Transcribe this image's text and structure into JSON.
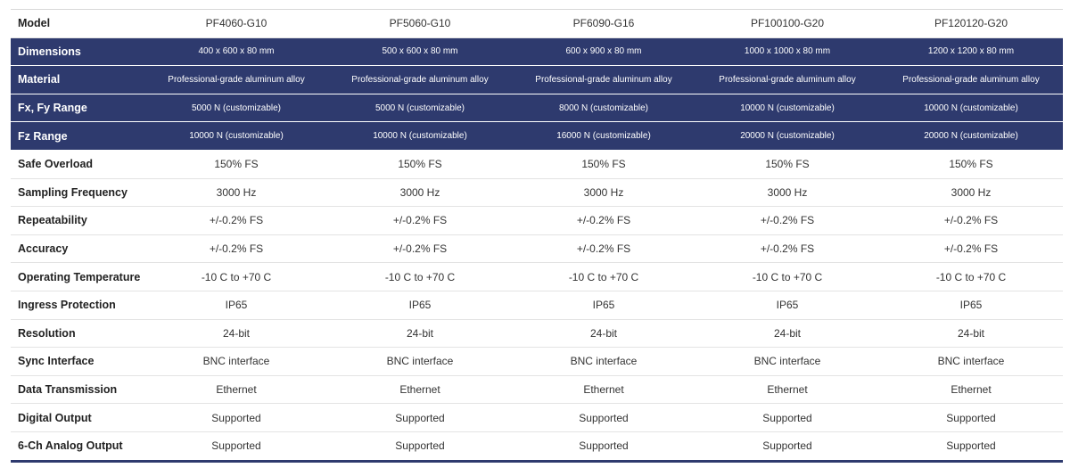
{
  "table": {
    "header": [
      "Model",
      "PF4060-G10",
      "PF5060-G10",
      "PF6090-G16",
      "PF100100-G20",
      "PF120120-G20"
    ],
    "rows": [
      [
        "Dimensions",
        "400 x 600 x 80 mm",
        "500 x 600 x 80 mm",
        "600 x 900 x 80 mm",
        "1000 x 1000 x 80 mm",
        "1200 x 1200 x 80 mm"
      ],
      [
        "Material",
        "Professional-grade aluminum alloy",
        "Professional-grade aluminum alloy",
        "Professional-grade aluminum alloy",
        "Professional-grade aluminum alloy",
        "Professional-grade aluminum alloy"
      ],
      [
        "Fx, Fy Range",
        "5000 N (customizable)",
        "5000 N (customizable)",
        "8000 N (customizable)",
        "10000 N (customizable)",
        "10000 N (customizable)"
      ],
      [
        "Fz Range",
        "10000 N (customizable)",
        "10000 N (customizable)",
        "16000 N (customizable)",
        "20000 N (customizable)",
        "20000 N (customizable)"
      ],
      [
        "Safe Overload",
        "150% FS",
        "150% FS",
        "150% FS",
        "150% FS",
        "150% FS"
      ],
      [
        "Sampling Frequency",
        "3000 Hz",
        "3000 Hz",
        "3000 Hz",
        "3000 Hz",
        "3000 Hz"
      ],
      [
        "Repeatability",
        "+/-0.2% FS",
        "+/-0.2% FS",
        "+/-0.2% FS",
        "+/-0.2% FS",
        "+/-0.2% FS"
      ],
      [
        "Accuracy",
        "+/-0.2% FS",
        "+/-0.2% FS",
        "+/-0.2% FS",
        "+/-0.2% FS",
        "+/-0.2% FS"
      ],
      [
        "Operating Temperature",
        "-10 C to +70 C",
        "-10 C to +70 C",
        "-10 C to +70 C",
        "-10 C to +70 C",
        "-10 C to +70 C"
      ],
      [
        "Ingress Protection",
        "IP65",
        "IP65",
        "IP65",
        "IP65",
        "IP65"
      ],
      [
        "Resolution",
        "24-bit",
        "24-bit",
        "24-bit",
        "24-bit",
        "24-bit"
      ],
      [
        "Sync Interface",
        "BNC interface",
        "BNC interface",
        "BNC interface",
        "BNC interface",
        "BNC interface"
      ],
      [
        "Data Transmission",
        "Ethernet",
        "Ethernet",
        "Ethernet",
        "Ethernet",
        "Ethernet"
      ],
      [
        "Digital Output",
        "Supported",
        "Supported",
        "Supported",
        "Supported",
        "Supported"
      ],
      [
        "6-Ch Analog Output",
        "Supported",
        "Supported",
        "Supported",
        "Supported",
        "Supported"
      ]
    ]
  }
}
